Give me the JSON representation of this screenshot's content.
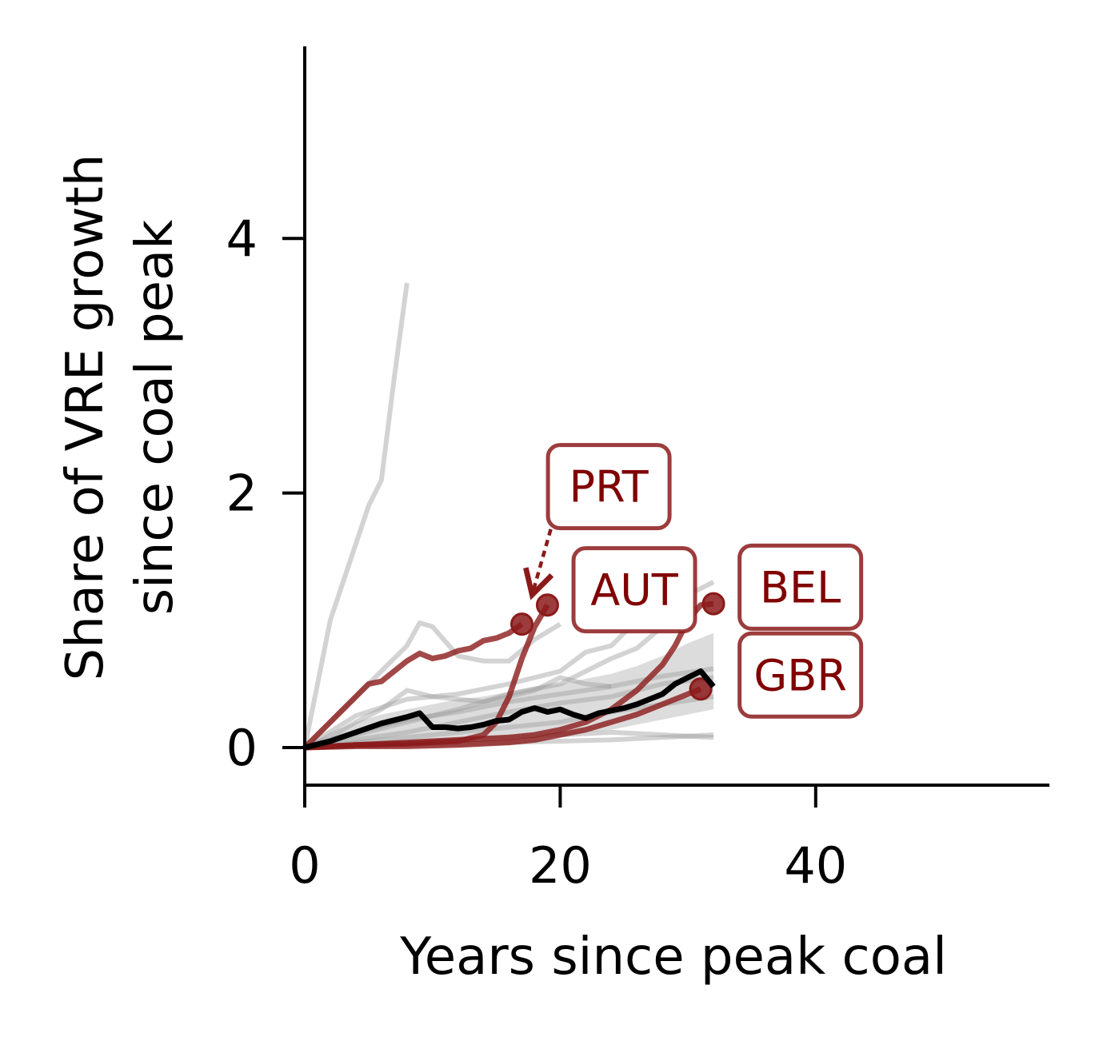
{
  "chart_data": {
    "type": "line",
    "title": "",
    "xlabel": "Years since peak coal",
    "ylabel_lines": [
      "Share of VRE growth",
      "since coal peak"
    ],
    "xlim": [
      0,
      58
    ],
    "ylim": [
      -0.3,
      5.5
    ],
    "x_ticks": [
      0,
      20,
      40
    ],
    "x_tick_labels": [
      "0",
      "20",
      "40"
    ],
    "y_ticks": [
      0,
      2,
      4
    ],
    "y_tick_labels": [
      "0",
      "2",
      "4"
    ],
    "grid": false,
    "colors": {
      "highlight": "#8b1a1a",
      "label_text": "#800000",
      "background_line": "#9e9e9e",
      "median": "#000000",
      "band": "#808080"
    },
    "band": {
      "x": [
        0,
        2,
        4,
        6,
        8,
        10,
        12,
        14,
        16,
        18,
        20,
        22,
        24,
        26,
        28,
        30,
        32
      ],
      "lower": [
        0,
        0,
        0.01,
        0.02,
        0.03,
        0.04,
        0.05,
        0.06,
        0.07,
        0.08,
        0.1,
        0.12,
        0.14,
        0.18,
        0.22,
        0.26,
        0.3
      ],
      "upper": [
        0,
        0.12,
        0.2,
        0.26,
        0.3,
        0.34,
        0.38,
        0.4,
        0.44,
        0.48,
        0.5,
        0.54,
        0.58,
        0.64,
        0.72,
        0.82,
        0.9
      ]
    },
    "median": {
      "x": [
        0,
        2,
        4,
        6,
        8,
        9,
        10,
        11,
        12,
        13,
        14,
        15,
        16,
        17,
        18,
        19,
        20,
        21,
        22,
        23,
        24,
        25,
        26,
        27,
        28,
        29,
        30,
        31,
        32
      ],
      "y": [
        0,
        0.05,
        0.12,
        0.19,
        0.24,
        0.27,
        0.16,
        0.16,
        0.15,
        0.16,
        0.18,
        0.21,
        0.22,
        0.28,
        0.31,
        0.28,
        0.3,
        0.26,
        0.23,
        0.27,
        0.29,
        0.31,
        0.34,
        0.38,
        0.42,
        0.5,
        0.55,
        0.6,
        0.48
      ]
    },
    "background_series": [
      {
        "x": [
          0,
          1,
          2,
          3,
          4,
          5,
          6,
          7,
          8
        ],
        "y": [
          0,
          0.5,
          1.0,
          1.3,
          1.6,
          1.9,
          2.1,
          2.9,
          3.65
        ]
      },
      {
        "x": [
          0,
          3,
          6,
          8,
          9,
          10,
          12,
          14,
          16,
          18,
          20
        ],
        "y": [
          0,
          0.3,
          0.6,
          0.8,
          0.98,
          0.95,
          0.72,
          0.68,
          0.68,
          0.85,
          0.97
        ]
      },
      {
        "x": [
          0,
          4,
          8,
          12,
          16,
          20,
          24,
          26,
          28,
          30,
          32
        ],
        "y": [
          0,
          0.1,
          0.2,
          0.3,
          0.42,
          0.5,
          0.7,
          0.78,
          0.95,
          1.2,
          1.3
        ]
      },
      {
        "x": [
          0,
          4,
          8,
          12,
          16,
          20,
          22,
          24,
          26,
          28,
          30
        ],
        "y": [
          0,
          0.25,
          0.38,
          0.42,
          0.5,
          0.6,
          0.75,
          0.8,
          1.0,
          1.2,
          1.4
        ]
      },
      {
        "x": [
          0,
          4,
          8,
          12,
          16,
          20,
          24,
          28,
          32
        ],
        "y": [
          0,
          0.06,
          0.12,
          0.2,
          0.28,
          0.35,
          0.4,
          0.5,
          0.55
        ]
      },
      {
        "x": [
          0,
          4,
          8,
          12,
          16,
          20,
          24,
          28,
          32
        ],
        "y": [
          0,
          0.04,
          0.08,
          0.12,
          0.16,
          0.2,
          0.28,
          0.34,
          0.4
        ]
      },
      {
        "x": [
          0,
          4,
          8,
          12,
          16,
          20,
          24,
          28,
          32
        ],
        "y": [
          0,
          0.02,
          0.04,
          0.06,
          0.08,
          0.1,
          0.12,
          0.1,
          0.08
        ]
      },
      {
        "x": [
          0,
          4,
          8,
          12,
          16,
          20,
          24,
          28,
          32
        ],
        "y": [
          0,
          0.01,
          0.02,
          0.03,
          0.04,
          0.05,
          0.06,
          0.08,
          0.1
        ]
      },
      {
        "x": [
          0,
          4,
          8,
          12,
          16,
          20,
          24,
          28,
          32
        ],
        "y": [
          0,
          0.12,
          0.22,
          0.28,
          0.36,
          0.42,
          0.48,
          0.56,
          0.62
        ]
      },
      {
        "x": [
          0,
          2,
          4,
          6,
          8,
          10,
          12,
          14,
          16,
          18,
          20,
          22,
          24
        ],
        "y": [
          0,
          0.08,
          0.2,
          0.3,
          0.45,
          0.4,
          0.38,
          0.36,
          0.4,
          0.45,
          0.55,
          0.5,
          0.48
        ]
      }
    ],
    "series": [
      {
        "name": "PRT",
        "x": [
          0,
          2,
          4,
          5,
          6,
          7,
          8,
          9,
          10,
          11,
          12,
          13,
          14,
          15,
          16,
          17
        ],
        "y": [
          0,
          0.2,
          0.4,
          0.5,
          0.52,
          0.6,
          0.68,
          0.74,
          0.7,
          0.72,
          0.76,
          0.78,
          0.84,
          0.86,
          0.9,
          0.97
        ],
        "end": {
          "x": 17,
          "y": 0.97
        }
      },
      {
        "name": "AUT",
        "x": [
          0,
          4,
          8,
          12,
          14,
          15,
          16,
          17,
          18,
          19
        ],
        "y": [
          0,
          0.02,
          0.03,
          0.05,
          0.1,
          0.2,
          0.4,
          0.7,
          0.95,
          1.12
        ],
        "end": {
          "x": 19,
          "y": 1.12
        }
      },
      {
        "name": "BEL",
        "x": [
          0,
          4,
          8,
          12,
          16,
          18,
          20,
          22,
          24,
          26,
          28,
          29,
          30,
          31,
          32
        ],
        "y": [
          0,
          0.02,
          0.04,
          0.06,
          0.08,
          0.1,
          0.14,
          0.2,
          0.3,
          0.45,
          0.65,
          0.8,
          1.0,
          1.12,
          1.13
        ],
        "end": {
          "x": 32,
          "y": 1.13
        }
      },
      {
        "name": "GBR",
        "x": [
          0,
          4,
          8,
          12,
          16,
          18,
          20,
          22,
          24,
          26,
          28,
          30,
          31
        ],
        "y": [
          0,
          0.01,
          0.01,
          0.02,
          0.04,
          0.06,
          0.1,
          0.14,
          0.2,
          0.26,
          0.34,
          0.42,
          0.46
        ],
        "end": {
          "x": 31,
          "y": 0.46
        }
      }
    ],
    "annotations": [
      {
        "label": "PRT",
        "anchor": {
          "x": 23.8,
          "y": 2.05
        },
        "arrow_from": {
          "x": 19.5,
          "y": 1.8
        },
        "arrow_to": {
          "x": 17.8,
          "y": 1.2
        }
      },
      {
        "label": "AUT",
        "anchor": {
          "x": 25.8,
          "y": 1.24
        }
      },
      {
        "label": "BEL",
        "anchor": {
          "x": 38.8,
          "y": 1.26
        }
      },
      {
        "label": "GBR",
        "anchor": {
          "x": 38.8,
          "y": 0.57
        }
      }
    ]
  }
}
